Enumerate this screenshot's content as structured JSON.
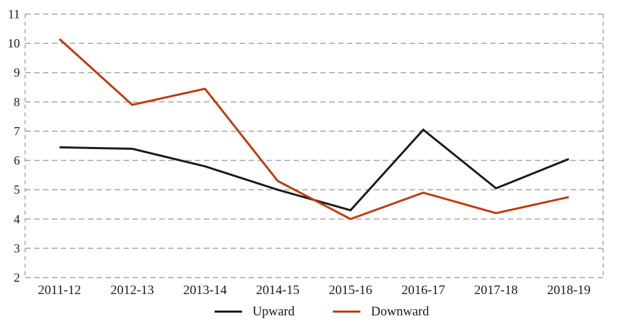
{
  "chart_data": {
    "type": "line",
    "title": "",
    "xlabel": "",
    "ylabel": "",
    "categories": [
      "2011-12",
      "2012-13",
      "2013-14",
      "2014-15",
      "2015-16",
      "2016-17",
      "2017-18",
      "2018-19"
    ],
    "series": [
      {
        "name": "Upward",
        "color": "#1a1a1a",
        "values": [
          6.45,
          6.4,
          5.8,
          5.0,
          4.3,
          7.05,
          5.05,
          6.05
        ]
      },
      {
        "name": "Downward",
        "color": "#bf3a0c",
        "values": [
          10.15,
          7.9,
          8.45,
          5.3,
          4.0,
          4.9,
          4.2,
          4.75
        ]
      }
    ],
    "ylim": [
      2,
      11
    ],
    "yticks": [
      2,
      3,
      4,
      5,
      6,
      7,
      8,
      9,
      10,
      11
    ],
    "grid": "horizontal dashed gridlines at every integer, dashed plot border",
    "gridline_color": "#a3a3a3",
    "tick_label_color": "#1a1a1a",
    "legend_position": "bottom-center",
    "line_width": 3
  }
}
